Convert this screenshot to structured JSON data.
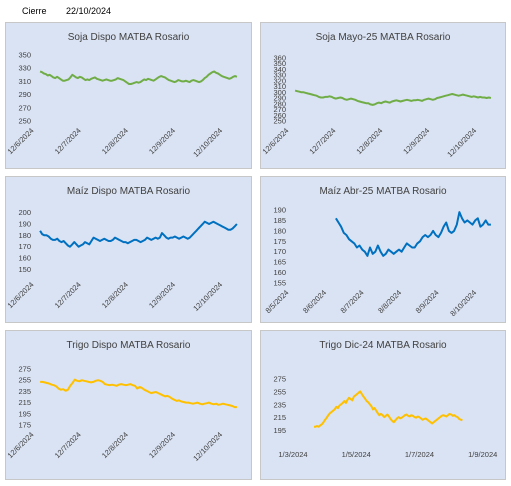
{
  "header": {
    "label": "Cierre",
    "date": "22/10/2024"
  },
  "colors": {
    "green": "#70ad47",
    "blue": "#0070c0",
    "gold": "#ffc000",
    "panel_bg": "#dae3f3"
  },
  "chart_data": [
    {
      "type": "line",
      "title": "Soja Dispo MATBA Rosario",
      "color": "#70ad47",
      "yticks": [
        250,
        270,
        290,
        310,
        330,
        350
      ],
      "ylim": [
        250,
        350
      ],
      "xticks": [
        "12/6/2024",
        "12/7/2024",
        "12/8/2024",
        "12/9/2024",
        "12/10/2024"
      ],
      "values": [
        325,
        324,
        322,
        321,
        319,
        320,
        318,
        316,
        315,
        317,
        315,
        313,
        311,
        311,
        312,
        313,
        316,
        320,
        318,
        316,
        315,
        317,
        316,
        314,
        312,
        313,
        312,
        314,
        315,
        316,
        314,
        313,
        312,
        311,
        312,
        313,
        312,
        311,
        311,
        312,
        313,
        315,
        314,
        313,
        312,
        310,
        308,
        306,
        306,
        307,
        308,
        309,
        308,
        309,
        311,
        313,
        312,
        314,
        313,
        312,
        311,
        313,
        315,
        317,
        318,
        317,
        316,
        314,
        312,
        311,
        310,
        309,
        310,
        312,
        311,
        310,
        310,
        311,
        310,
        309,
        311,
        312,
        311,
        310,
        309,
        310,
        312,
        315,
        317,
        320,
        322,
        324,
        325,
        323,
        322,
        320,
        318,
        317,
        316,
        315,
        314,
        315,
        317,
        318,
        317
      ]
    },
    {
      "type": "line",
      "title": "Soja Mayo-25 MATBA Rosario",
      "color": "#70ad47",
      "yticks": [
        250,
        270,
        290,
        310,
        330,
        350
      ],
      "ylim": [
        250,
        365
      ],
      "ytop_label": "360",
      "yticks_full": [
        250,
        260,
        270,
        280,
        290,
        300,
        310,
        320,
        330,
        340,
        350,
        360
      ],
      "xticks": [
        "12/6/2024",
        "12/7/2024",
        "12/8/2024",
        "12/9/2024",
        "12/10/2024"
      ],
      "values": [
        303,
        302,
        301,
        300,
        300,
        299,
        298,
        297,
        296,
        295,
        294,
        292,
        291,
        291,
        292,
        292,
        293,
        292,
        290,
        289,
        290,
        291,
        290,
        288,
        287,
        288,
        289,
        288,
        287,
        285,
        284,
        283,
        282,
        281,
        281,
        279,
        278,
        279,
        281,
        282,
        281,
        283,
        284,
        283,
        282,
        284,
        285,
        286,
        285,
        284,
        285,
        286,
        287,
        286,
        285,
        286,
        286,
        287,
        286,
        285,
        287,
        288,
        289,
        288,
        287,
        288,
        290,
        291,
        292,
        293,
        294,
        295,
        296,
        297,
        296,
        295,
        294,
        295,
        296,
        295,
        294,
        293,
        292,
        293,
        292,
        291,
        292,
        291,
        291,
        290,
        291,
        290
      ]
    },
    {
      "type": "line",
      "title": "Maíz Dispo MATBA Rosario",
      "color": "#0070c0",
      "yticks": [
        150,
        160,
        170,
        180,
        190,
        200
      ],
      "ylim": [
        145,
        205
      ],
      "xticks": [
        "12/6/2024",
        "12/7/2024",
        "12/8/2024",
        "12/9/2024",
        "12/10/2024"
      ],
      "values": [
        184,
        181,
        180,
        180,
        179,
        177,
        176,
        176,
        177,
        175,
        174,
        175,
        173,
        171,
        170,
        172,
        174,
        172,
        170,
        171,
        172,
        174,
        173,
        172,
        175,
        178,
        177,
        176,
        175,
        176,
        177,
        176,
        175,
        175,
        176,
        178,
        177,
        176,
        175,
        174,
        174,
        173,
        174,
        175,
        176,
        176,
        175,
        174,
        175,
        176,
        178,
        177,
        176,
        177,
        178,
        177,
        178,
        182,
        180,
        178,
        177,
        178,
        178,
        179,
        178,
        177,
        178,
        179,
        178,
        177,
        178,
        180,
        182,
        184,
        186,
        188,
        190,
        192,
        191,
        190,
        191,
        192,
        191,
        190,
        189,
        188,
        187,
        186,
        185,
        185,
        186,
        188,
        190
      ]
    },
    {
      "type": "line",
      "title": "Maíz Abr-25 MATBA Rosario",
      "color": "#0070c0",
      "yticks": [
        155,
        160,
        165,
        170,
        175,
        180,
        185,
        190
      ],
      "ylim": [
        155,
        190
      ],
      "xticks": [
        "8/5/2024",
        "8/6/2024",
        "8/7/2024",
        "8/8/2024",
        "8/9/2024",
        "8/10/2024"
      ],
      "values": [
        186,
        184,
        182,
        179,
        178,
        176,
        175,
        174,
        172,
        173,
        171,
        170,
        168,
        172,
        169,
        170,
        173,
        170,
        168,
        169,
        171,
        170,
        169,
        170,
        171,
        170,
        172,
        174,
        173,
        172,
        172,
        174,
        175,
        177,
        178,
        177,
        178,
        180,
        178,
        177,
        179,
        182,
        184,
        180,
        179,
        180,
        183,
        189,
        186,
        184,
        185,
        184,
        183,
        185,
        186,
        182,
        183,
        185,
        183,
        183
      ]
    },
    {
      "type": "line",
      "title": "Trigo Dispo MATBA Rosario",
      "color": "#ffc000",
      "yticks": [
        175,
        195,
        215,
        235,
        255,
        275
      ],
      "ylim": [
        175,
        275
      ],
      "xticks": [
        "12/6/2024",
        "12/7/2024",
        "12/8/2024",
        "12/9/2024",
        "12/10/2024"
      ],
      "values": [
        252,
        252,
        251,
        250,
        249,
        247,
        246,
        244,
        240,
        238,
        239,
        236,
        238,
        245,
        250,
        256,
        254,
        253,
        255,
        254,
        253,
        252,
        251,
        252,
        254,
        255,
        254,
        252,
        248,
        247,
        246,
        247,
        246,
        245,
        247,
        248,
        247,
        246,
        247,
        248,
        246,
        245,
        240,
        243,
        241,
        238,
        236,
        234,
        232,
        233,
        234,
        232,
        230,
        228,
        226,
        227,
        225,
        222,
        220,
        218,
        219,
        217,
        216,
        215,
        215,
        214,
        213,
        214,
        215,
        213,
        212,
        213,
        214,
        215,
        213,
        212,
        213,
        211,
        212,
        213,
        212,
        211,
        210,
        209,
        207,
        207
      ]
    },
    {
      "type": "line",
      "title": "Trigo Dic-24 MATBA Rosario",
      "color": "#ffc000",
      "yticks": [
        195,
        215,
        235,
        255,
        275
      ],
      "ylim": [
        185,
        280
      ],
      "xticks": [
        "1/3/2024",
        "1/5/2024",
        "1/7/2024",
        "1/9/2024"
      ],
      "x_range": [
        0,
        240
      ],
      "x_start": 27,
      "values": [
        201,
        201,
        202,
        201,
        203,
        205,
        208,
        212,
        215,
        219,
        222,
        224,
        226,
        228,
        232,
        230,
        234,
        236,
        238,
        241,
        238,
        243,
        246,
        244,
        242,
        248,
        250,
        252,
        254,
        256,
        252,
        248,
        245,
        241,
        239,
        236,
        233,
        228,
        230,
        226,
        222,
        219,
        221,
        219,
        216,
        218,
        220,
        217,
        213,
        210,
        208,
        211,
        214,
        216,
        214,
        215,
        217,
        219,
        220,
        218,
        217,
        219,
        218,
        216,
        215,
        217,
        216,
        214,
        212,
        213,
        214,
        212,
        210,
        208,
        206,
        208,
        210,
        212,
        214,
        216,
        218,
        219,
        218,
        217,
        219,
        221,
        220,
        218,
        219,
        217,
        216,
        213,
        212,
        211
      ]
    }
  ]
}
